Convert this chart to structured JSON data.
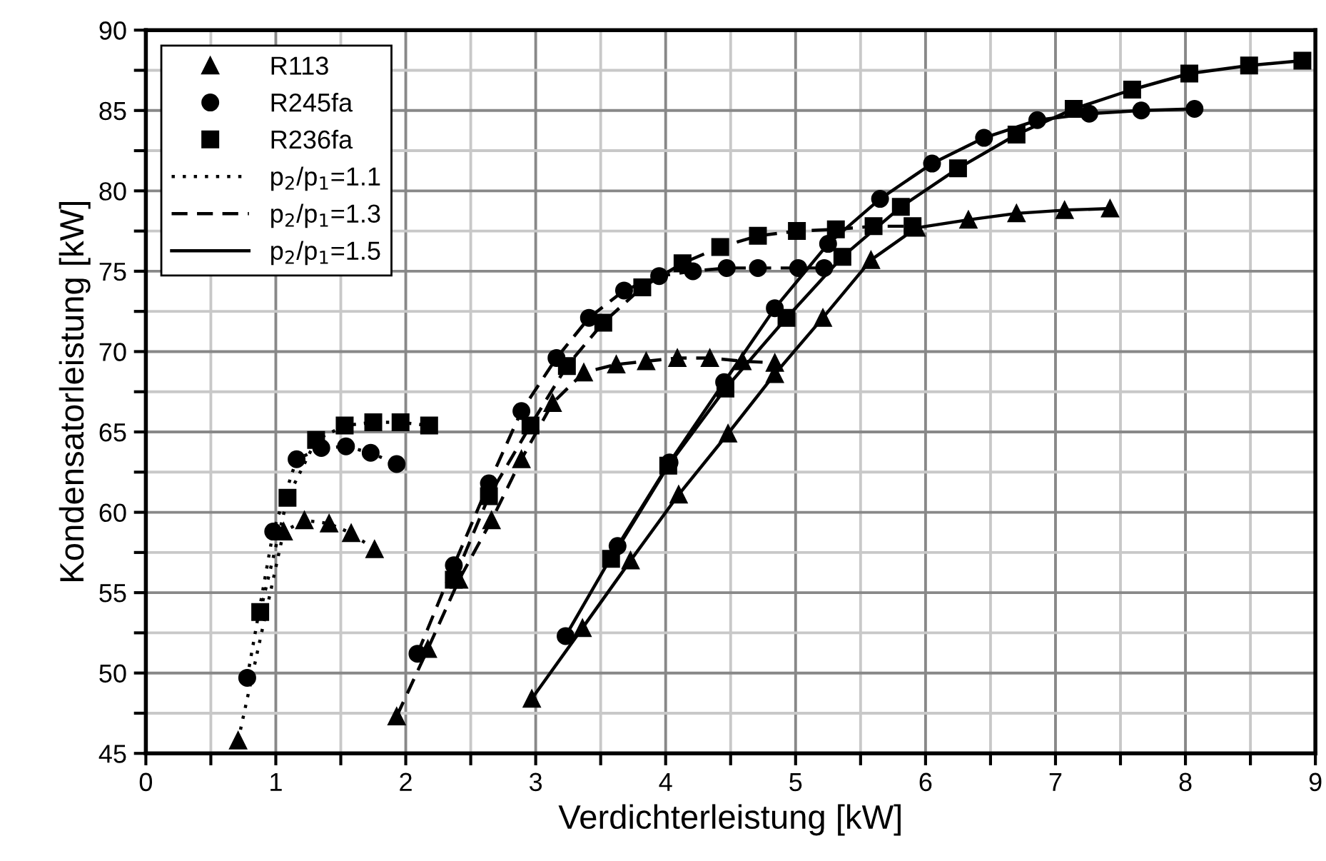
{
  "chart_data": {
    "type": "line",
    "xlabel": "Verdichterleistung [kW]",
    "ylabel": "Kondensatorleistung [kW]",
    "xlim": [
      0,
      9
    ],
    "ylim": [
      45,
      90
    ],
    "xticks": [
      0,
      {
        "value": 0.5,
        "label": null
      },
      1,
      {
        "value": 1.5,
        "label": null
      },
      2,
      {
        "value": 2.5,
        "label": null
      },
      3,
      {
        "value": 3.5,
        "label": null
      },
      4,
      {
        "value": 4.5,
        "label": null
      },
      5,
      {
        "value": 5.5,
        "label": null
      },
      6,
      {
        "value": 6.5,
        "label": null
      },
      7,
      {
        "value": 7.5,
        "label": null
      },
      8,
      {
        "value": 8.5,
        "label": null
      },
      9
    ],
    "yticks": [
      45,
      {
        "value": 47.5,
        "label": null
      },
      50,
      {
        "value": 52.5,
        "label": null
      },
      55,
      {
        "value": 57.5,
        "label": null
      },
      60,
      {
        "value": 62.5,
        "label": null
      },
      65,
      {
        "value": 67.5,
        "label": null
      },
      70,
      {
        "value": 72.5,
        "label": null
      },
      75,
      {
        "value": 77.5,
        "label": null
      },
      80,
      {
        "value": 82.5,
        "label": null
      },
      85,
      {
        "value": 87.5,
        "label": null
      },
      90
    ],
    "grid": true,
    "legend": "top left",
    "series": [
      {
        "name": "R113",
        "color": "#000000",
        "marker": "triangle",
        "line_style": "none"
      },
      {
        "name": "R245fa",
        "color": "#000000",
        "marker": "circle",
        "line_style": "none"
      },
      {
        "name": "R236fa",
        "color": "#000000",
        "marker": "square",
        "line_style": "none"
      },
      {
        "name": "p$_{2}$/p$_{1}$=1.1",
        "color": "#000000",
        "marker": "none",
        "line_style": "dotted"
      },
      {
        "name": "p$_{2}$/p$_{1}$=1.3",
        "color": "#000000",
        "marker": "none",
        "line_style": "dashed"
      },
      {
        "name": "p$_{2}$/p$_{1}$=1.5",
        "color": "#000000",
        "marker": "none",
        "line_style": "solid"
      },
      {
        "color": "#000000",
        "marker": "triangle",
        "line_style": "dotted",
        "x": [
          0.71,
          1.06,
          1.22,
          1.41,
          1.58,
          1.76
        ],
        "values": [
          45.8,
          58.8,
          59.5,
          59.3,
          58.7,
          57.7
        ]
      },
      {
        "color": "#000000",
        "marker": "circle",
        "line_style": "dotted",
        "x": [
          0.78,
          0.98,
          1.16,
          1.35,
          1.54,
          1.73,
          1.93
        ],
        "values": [
          49.7,
          58.8,
          63.3,
          64.0,
          64.1,
          63.7,
          63.0
        ]
      },
      {
        "color": "#000000",
        "marker": "square",
        "line_style": "dotted",
        "x": [
          0.88,
          1.09,
          1.31,
          1.53,
          1.75,
          1.96,
          2.18
        ],
        "values": [
          53.8,
          60.9,
          64.5,
          65.4,
          65.6,
          65.6,
          65.4
        ]
      },
      {
        "color": "#000000",
        "marker": "triangle",
        "line_style": "dashed",
        "x": [
          1.93,
          2.17,
          2.41,
          2.66,
          2.89,
          3.13,
          3.37,
          3.62,
          3.85,
          4.09,
          4.34,
          4.59,
          4.84
        ],
        "values": [
          47.3,
          51.5,
          55.8,
          59.5,
          63.3,
          66.8,
          68.7,
          69.2,
          69.4,
          69.6,
          69.6,
          69.4,
          69.3
        ]
      },
      {
        "color": "#000000",
        "marker": "circle",
        "line_style": "dashed",
        "x": [
          2.09,
          2.37,
          2.64,
          2.89,
          3.16,
          3.41,
          3.68,
          3.95,
          4.21,
          4.47,
          4.71,
          5.02,
          5.22
        ],
        "values": [
          51.2,
          56.7,
          61.8,
          66.3,
          69.6,
          72.1,
          73.8,
          74.7,
          75.0,
          75.2,
          75.2,
          75.2,
          75.2
        ]
      },
      {
        "color": "#000000",
        "marker": "square",
        "line_style": "dashed",
        "x": [
          2.37,
          2.64,
          2.96,
          3.24,
          3.52,
          3.82,
          4.13,
          4.42,
          4.71,
          5.01,
          5.31,
          5.6,
          5.9
        ],
        "values": [
          55.8,
          61.0,
          65.4,
          69.1,
          71.8,
          74.0,
          75.5,
          76.5,
          77.2,
          77.5,
          77.6,
          77.8,
          77.8
        ]
      },
      {
        "color": "#000000",
        "marker": "triangle",
        "line_style": "solid",
        "x": [
          2.97,
          3.36,
          3.73,
          4.1,
          4.48,
          4.84,
          5.21,
          5.58,
          5.93,
          6.33,
          6.7,
          7.07,
          7.42
        ],
        "values": [
          48.4,
          52.8,
          57.0,
          61.1,
          64.9,
          68.6,
          72.1,
          75.7,
          77.7,
          78.2,
          78.6,
          78.8,
          78.9
        ]
      },
      {
        "color": "#000000",
        "marker": "circle",
        "line_style": "solid",
        "x": [
          3.23,
          3.63,
          4.03,
          4.45,
          4.84,
          5.25,
          5.65,
          6.05,
          6.45,
          6.86,
          7.26,
          7.66,
          8.07
        ],
        "values": [
          52.3,
          57.9,
          63.1,
          68.1,
          72.7,
          76.7,
          79.5,
          81.7,
          83.3,
          84.4,
          84.8,
          85.0,
          85.1
        ]
      },
      {
        "color": "#000000",
        "marker": "square",
        "line_style": "solid",
        "x": [
          3.58,
          4.02,
          4.46,
          4.93,
          5.36,
          5.81,
          6.25,
          6.7,
          7.14,
          7.59,
          8.03,
          8.49,
          8.9
        ],
        "values": [
          57.1,
          62.9,
          67.7,
          72.1,
          75.9,
          79.0,
          81.4,
          83.5,
          85.1,
          86.3,
          87.3,
          87.8,
          88.1
        ]
      }
    ]
  }
}
